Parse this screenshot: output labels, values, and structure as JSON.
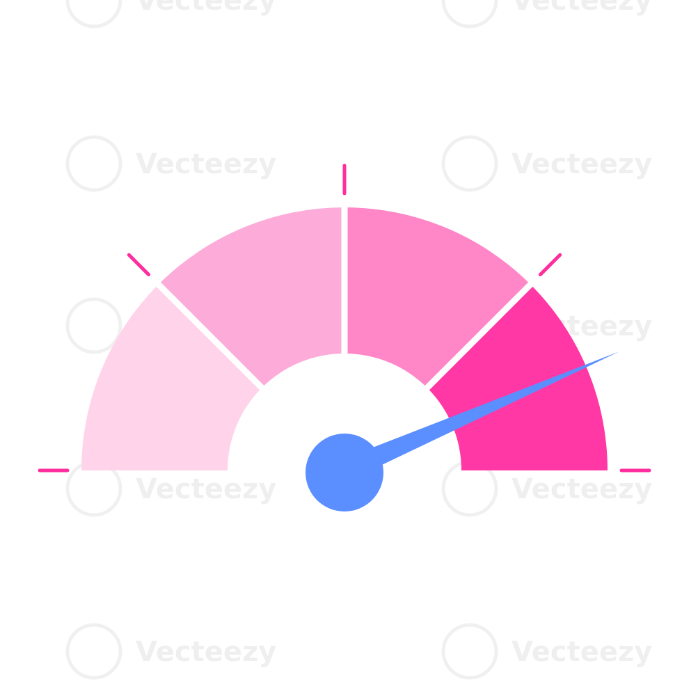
{
  "gauge": {
    "level": 0.87,
    "segments": [
      {
        "color": "#FFD3EA"
      },
      {
        "color": "#FDACD9"
      },
      {
        "color": "#FF87C8"
      },
      {
        "color": "#FF38A6"
      }
    ],
    "tick_color": "#FF2E9E",
    "needle_color": "#5B8EFF",
    "background": "#FFFFFF"
  },
  "watermark": {
    "text": "Vecteezy"
  }
}
